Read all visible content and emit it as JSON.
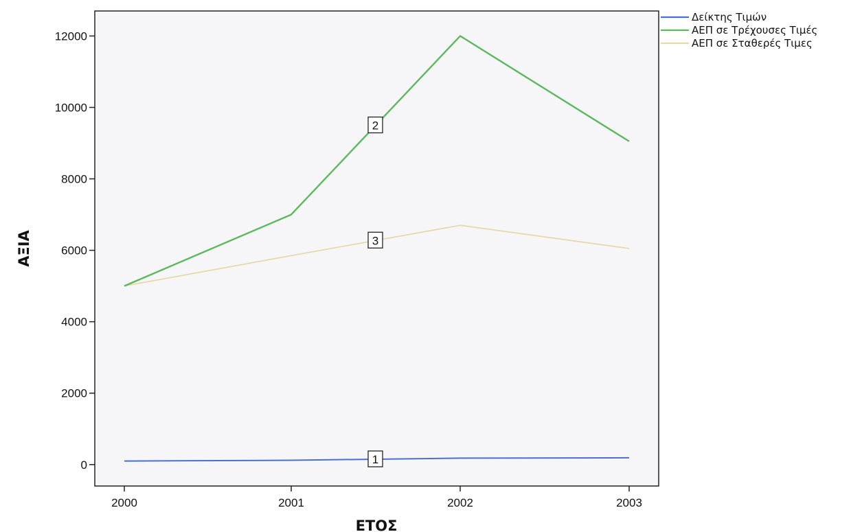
{
  "chart_data": {
    "type": "line",
    "title": "",
    "xlabel": "ΕΤΟΣ",
    "ylabel": "ΑΞΙΑ",
    "x": [
      "2000",
      "2001",
      "2002",
      "2003"
    ],
    "xlim": [
      2000,
      2003
    ],
    "ylim": [
      -600,
      12700
    ],
    "yticks": [
      0,
      2000,
      4000,
      6000,
      8000,
      10000,
      12000
    ],
    "grid": false,
    "legend_position": "top-right-outside",
    "series": [
      {
        "name": "Δείκτης Τιμών",
        "marker_label": "1",
        "color": "#4a6fd0",
        "values": [
          100,
          120,
          180,
          190
        ]
      },
      {
        "name": "ΑΕΠ σε Τρέχουσες Τιμές",
        "marker_label": "2",
        "color": "#5cb85c",
        "values": [
          5000,
          7000,
          12000,
          9050
        ]
      },
      {
        "name": "ΑΕΠ σε Σταθερές Τιμες",
        "marker_label": "3",
        "color": "#e6d9a8",
        "values": [
          5000,
          5850,
          6700,
          6050
        ]
      }
    ]
  }
}
